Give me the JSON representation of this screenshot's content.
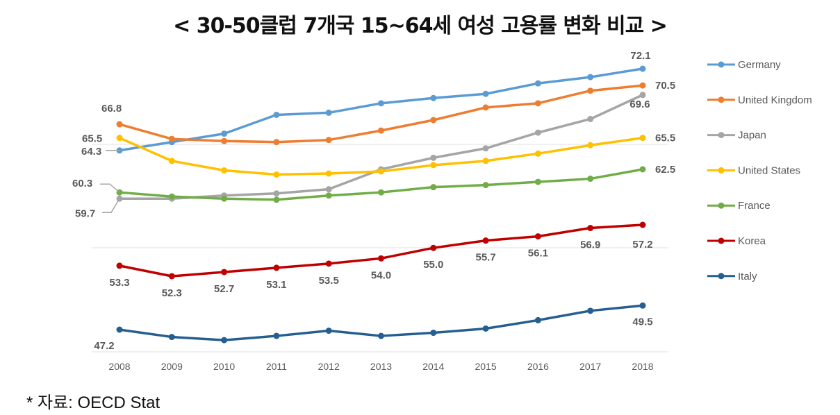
{
  "chart_data": {
    "type": "line",
    "title": "< 30-50클럽 7개국 15~64세 여성 고용률 변화 비교 >",
    "source": "* 자료: OECD Stat",
    "xlabel": "",
    "ylabel": "",
    "x": [
      "2008",
      "2009",
      "2010",
      "2011",
      "2012",
      "2013",
      "2014",
      "2015",
      "2016",
      "2017",
      "2018"
    ],
    "ylim": [
      45.5,
      73
    ],
    "grid": "sparse horizontal",
    "legend": "right",
    "series": [
      {
        "name": "Germany",
        "color": "#5B9BD5",
        "values": [
          64.3,
          65.1,
          65.9,
          67.7,
          67.9,
          68.8,
          69.3,
          69.7,
          70.7,
          71.3,
          72.1
        ]
      },
      {
        "name": "United Kingdom",
        "color": "#ED7D31",
        "values": [
          66.8,
          65.4,
          65.2,
          65.1,
          65.3,
          66.2,
          67.2,
          68.4,
          68.8,
          70.0,
          70.5
        ]
      },
      {
        "name": "Japan",
        "color": "#A5A5A5",
        "values": [
          59.7,
          59.7,
          60.0,
          60.2,
          60.6,
          62.5,
          63.6,
          64.5,
          66.0,
          67.3,
          69.6
        ]
      },
      {
        "name": "United States",
        "color": "#FFC000",
        "values": [
          65.5,
          63.3,
          62.4,
          62.0,
          62.1,
          62.3,
          62.9,
          63.3,
          64.0,
          64.8,
          65.5
        ]
      },
      {
        "name": "France",
        "color": "#70AD47",
        "values": [
          60.3,
          59.9,
          59.7,
          59.6,
          60.0,
          60.3,
          60.8,
          61.0,
          61.3,
          61.6,
          62.5
        ]
      },
      {
        "name": "Korea",
        "color": "#C00000",
        "values": [
          53.3,
          52.3,
          52.7,
          53.1,
          53.5,
          54.0,
          55.0,
          55.7,
          56.1,
          56.9,
          57.2
        ]
      },
      {
        "name": "Italy",
        "color": "#255E91",
        "values": [
          47.2,
          46.5,
          46.2,
          46.6,
          47.1,
          46.6,
          46.9,
          47.3,
          48.1,
          49.0,
          49.5
        ]
      }
    ],
    "data_labels": [
      {
        "series": "Germany",
        "year": "2008",
        "text": "64.3"
      },
      {
        "series": "Germany",
        "year": "2018",
        "text": "72.1"
      },
      {
        "series": "United Kingdom",
        "year": "2008",
        "text": "66.8"
      },
      {
        "series": "United Kingdom",
        "year": "2018",
        "text": "70.5"
      },
      {
        "series": "Japan",
        "year": "2008",
        "text": "59.7"
      },
      {
        "series": "Japan",
        "year": "2018",
        "text": "69.6"
      },
      {
        "series": "United States",
        "year": "2008",
        "text": "65.5"
      },
      {
        "series": "United States",
        "year": "2018",
        "text": "65.5"
      },
      {
        "series": "France",
        "year": "2008",
        "text": "60.3"
      },
      {
        "series": "France",
        "year": "2018",
        "text": "62.5"
      },
      {
        "series": "Korea",
        "year": "2008",
        "text": "53.3"
      },
      {
        "series": "Korea",
        "year": "2009",
        "text": "52.3"
      },
      {
        "series": "Korea",
        "year": "2010",
        "text": "52.7"
      },
      {
        "series": "Korea",
        "year": "2011",
        "text": "53.1"
      },
      {
        "series": "Korea",
        "year": "2012",
        "text": "53.5"
      },
      {
        "series": "Korea",
        "year": "2013",
        "text": "54.0"
      },
      {
        "series": "Korea",
        "year": "2014",
        "text": "55.0"
      },
      {
        "series": "Korea",
        "year": "2015",
        "text": "55.7"
      },
      {
        "series": "Korea",
        "year": "2016",
        "text": "56.1"
      },
      {
        "series": "Korea",
        "year": "2017",
        "text": "56.9"
      },
      {
        "series": "Korea",
        "year": "2018",
        "text": "57.2"
      },
      {
        "series": "Italy",
        "year": "2008",
        "text": "47.2"
      },
      {
        "series": "Italy",
        "year": "2018",
        "text": "49.5"
      }
    ]
  }
}
